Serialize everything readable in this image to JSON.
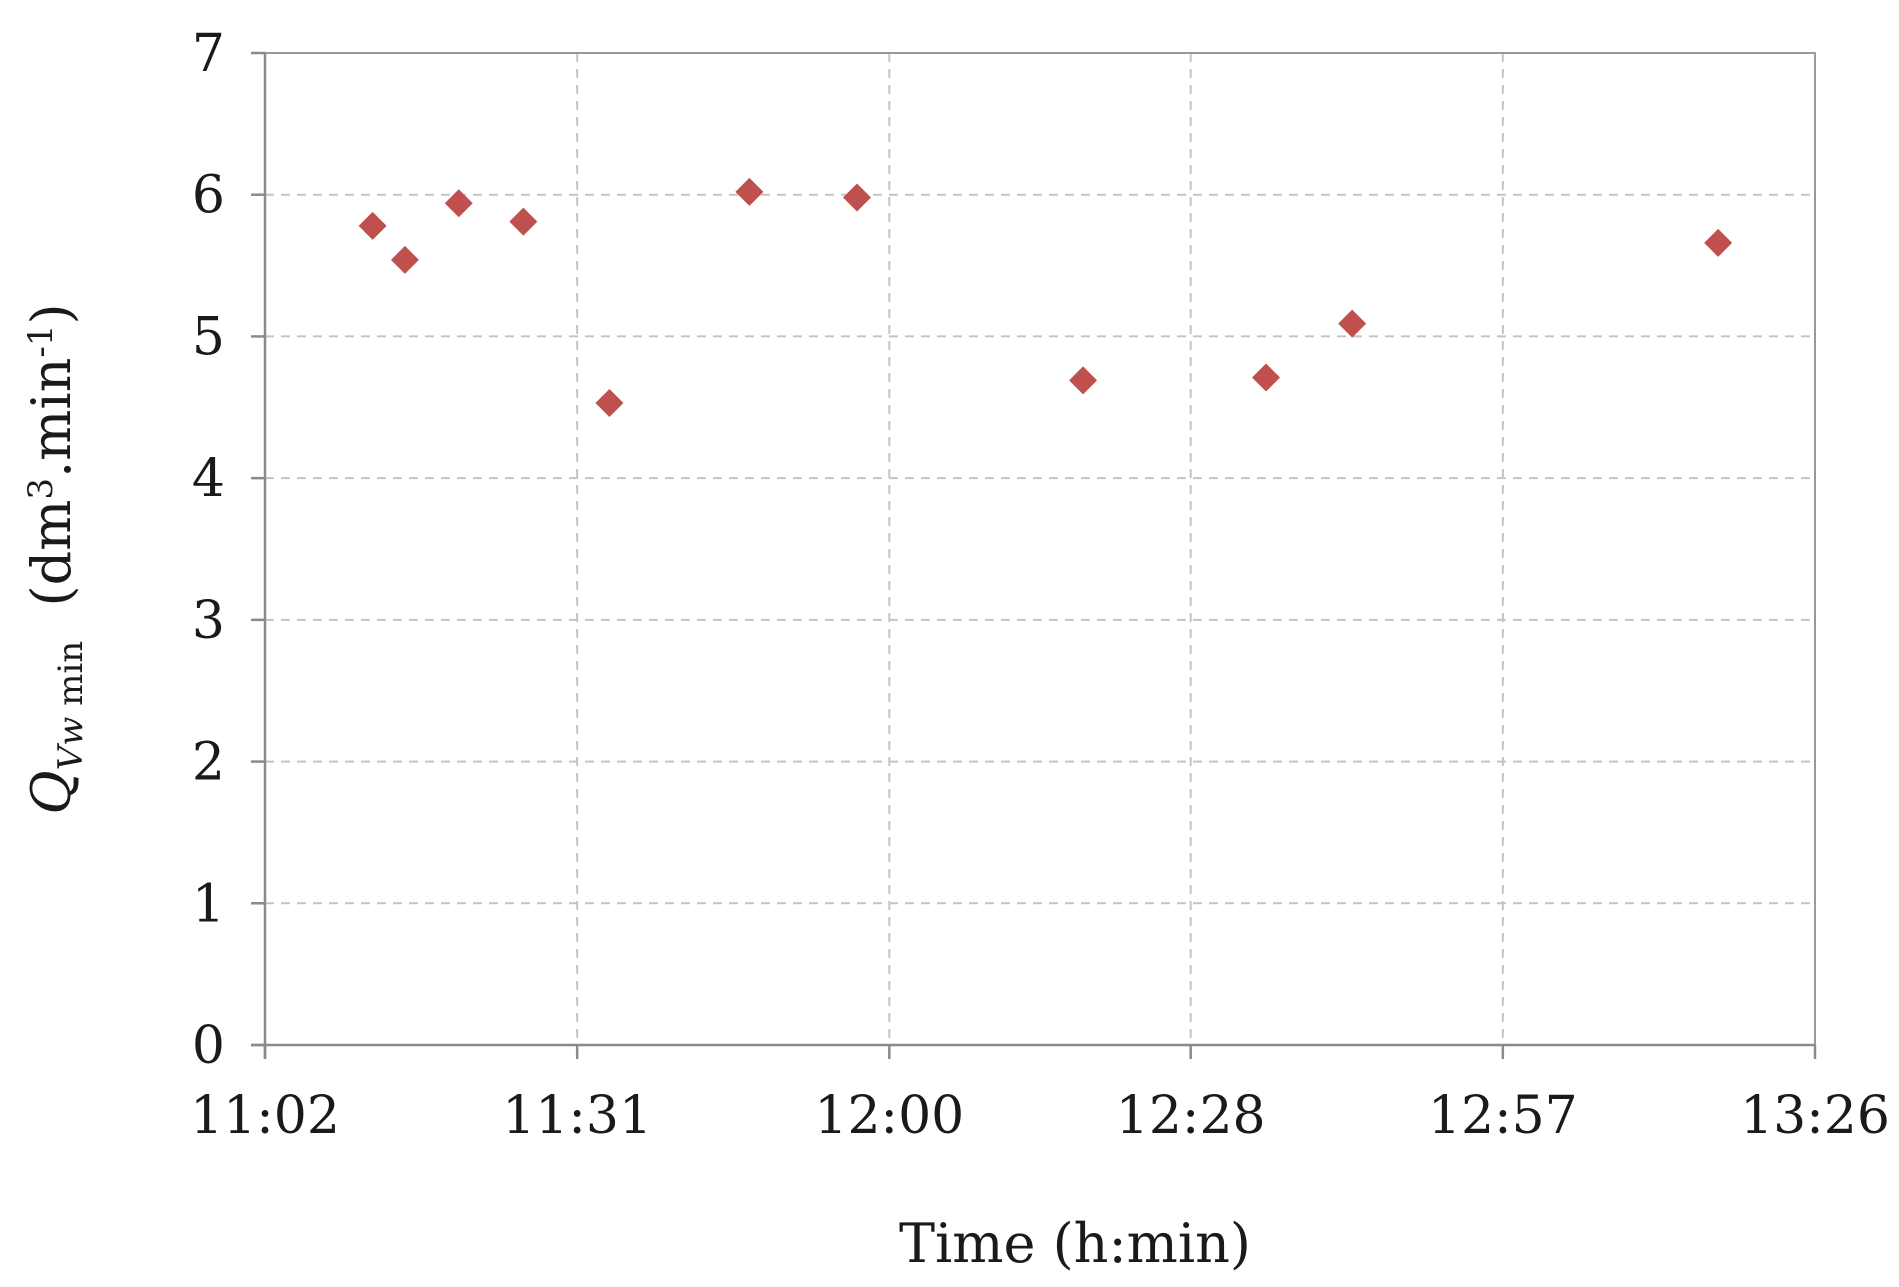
{
  "chart_data": {
    "type": "scatter",
    "title": "",
    "xlabel": "Time  (h:min)",
    "ylabel": {
      "main": "Q",
      "sub": "Vw",
      "sub2": " min",
      "unit_open": "  (dm",
      "unit_sup1": "3",
      "unit_mid": ".min",
      "unit_sup2": "-1",
      "unit_close": ")"
    },
    "x_axis": {
      "type": "time",
      "range": [
        "11:02",
        "13:26"
      ],
      "ticks": [
        "11:02",
        "11:31",
        "12:00",
        "12:28",
        "12:57",
        "13:26"
      ]
    },
    "y_axis": {
      "range": [
        0,
        7
      ],
      "ticks": [
        "0",
        "1",
        "2",
        "3",
        "4",
        "5",
        "6",
        "7"
      ]
    },
    "grid": true,
    "legend": "none",
    "series": [
      {
        "marker": "diamond",
        "color": "#C0504D",
        "points": [
          {
            "x": "11:12",
            "y": 5.78
          },
          {
            "x": "11:15",
            "y": 5.54
          },
          {
            "x": "11:20",
            "y": 5.94
          },
          {
            "x": "11:26",
            "y": 5.81
          },
          {
            "x": "11:34",
            "y": 4.53
          },
          {
            "x": "11:47",
            "y": 6.02
          },
          {
            "x": "11:57",
            "y": 5.98
          },
          {
            "x": "12:18",
            "y": 4.69
          },
          {
            "x": "12:35",
            "y": 4.71
          },
          {
            "x": "12:43",
            "y": 5.09
          },
          {
            "x": "13:17",
            "y": 5.66
          }
        ]
      }
    ]
  }
}
